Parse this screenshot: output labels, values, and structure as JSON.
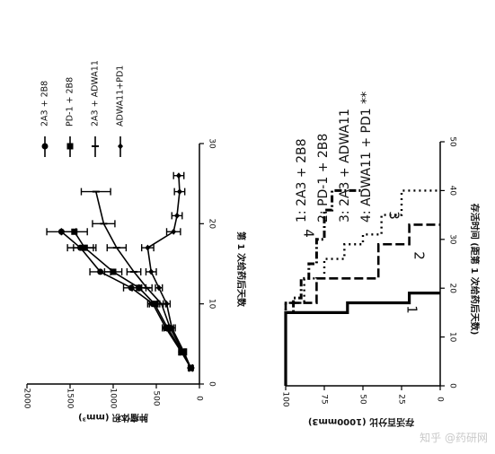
{
  "chart_data": [
    {
      "type": "line",
      "panel": "tumor-volume",
      "ylabel": "肿瘤体积 (mm³)",
      "xlabel": "第 1 次给药后天数",
      "xticks": [
        "0",
        "10",
        "20",
        "30"
      ],
      "yticks": [
        "0",
        "500",
        "1000",
        "1500",
        "2000"
      ],
      "xlim": [
        0,
        30
      ],
      "ylim": [
        0,
        2000
      ],
      "legend": {
        "position": "top",
        "items": [
          "2A3 + 2B8",
          "PD-1 + 2B8",
          "2A3 + ADWA11",
          "ADWA11+PD1"
        ]
      },
      "series": [
        {
          "name": "2A3 + 2B8",
          "marker": "circle",
          "x": [
            2,
            4,
            7,
            10,
            12,
            14,
            17,
            19
          ],
          "y": [
            100,
            210,
            390,
            540,
            790,
            1150,
            1380,
            1600
          ],
          "err": [
            20,
            30,
            40,
            60,
            90,
            120,
            150,
            170
          ]
        },
        {
          "name": "PD-1 + 2B8",
          "marker": "square",
          "x": [
            2,
            4,
            7,
            10,
            12,
            14,
            17,
            19
          ],
          "y": [
            100,
            200,
            370,
            520,
            700,
            1000,
            1330,
            1450
          ],
          "err": [
            20,
            30,
            40,
            60,
            80,
            100,
            130,
            150
          ]
        },
        {
          "name": "2A3 + ADWA11",
          "marker": "dash",
          "x": [
            2,
            4,
            7,
            10,
            12,
            14,
            17,
            20,
            24
          ],
          "y": [
            100,
            190,
            340,
            440,
            610,
            760,
            960,
            1110,
            1200
          ],
          "err": [
            20,
            30,
            40,
            50,
            60,
            80,
            110,
            130,
            170
          ]
        },
        {
          "name": "ADWA11+PD1",
          "marker": "diamond",
          "x": [
            2,
            4,
            7,
            10,
            12,
            14,
            17,
            19,
            21,
            24,
            26
          ],
          "y": [
            100,
            180,
            320,
            380,
            470,
            560,
            600,
            300,
            260,
            230,
            240
          ],
          "err": [
            20,
            30,
            40,
            40,
            40,
            60,
            70,
            80,
            60,
            60,
            60
          ]
        }
      ]
    },
    {
      "type": "line",
      "panel": "survival",
      "ylabel": "存活百分比 (1000mm3)",
      "xlabel": "存活时间 (距第 1 次给药后天数)",
      "xticks": [
        "0",
        "10",
        "20",
        "30",
        "40",
        "50"
      ],
      "yticks": [
        "0",
        "25",
        "50",
        "75",
        "100"
      ],
      "xlim": [
        0,
        50
      ],
      "ylim": [
        0,
        100
      ],
      "legend": {
        "position": "top",
        "items": [
          "1: 2A3 + 2B8",
          "2: PD-1 + 2B8",
          "3: 2A3 + ADWA11",
          "4: ADWA11 + PD1 **"
        ]
      },
      "series": [
        {
          "name": "1",
          "label": "1",
          "style": "solid",
          "x": [
            0,
            15,
            15,
            17,
            17,
            19,
            19
          ],
          "y": [
            100,
            100,
            60,
            60,
            20,
            20,
            0
          ]
        },
        {
          "name": "2",
          "label": "2",
          "style": "dash",
          "x": [
            0,
            17,
            17,
            22,
            22,
            29,
            29,
            33,
            33
          ],
          "y": [
            100,
            100,
            80,
            80,
            40,
            40,
            20,
            20,
            0
          ]
        },
        {
          "name": "3",
          "label": "3",
          "style": "dot",
          "x": [
            0,
            17,
            17,
            22,
            22,
            26,
            26,
            29,
            29,
            31,
            31,
            35,
            35,
            40,
            40
          ],
          "y": [
            100,
            100,
            88,
            88,
            75,
            75,
            62,
            62,
            50,
            50,
            38,
            38,
            25,
            25,
            0
          ]
        },
        {
          "name": "4",
          "label": "4",
          "style": "dashdot",
          "x": [
            0,
            15,
            15,
            18,
            18,
            22,
            22,
            25,
            25,
            30,
            30,
            36,
            36,
            40,
            40
          ],
          "y": [
            100,
            100,
            95,
            95,
            90,
            90,
            85,
            85,
            80,
            80,
            75,
            75,
            70,
            70,
            50
          ]
        }
      ]
    }
  ],
  "watermark": "知乎 @药研网"
}
